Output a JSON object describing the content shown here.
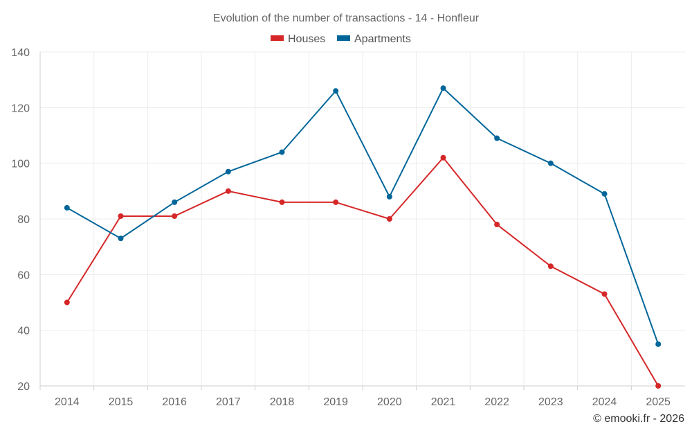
{
  "chart_data": {
    "type": "line",
    "title": "Evolution of the number of transactions - 14 - Honfleur",
    "categories": [
      "2014",
      "2015",
      "2016",
      "2017",
      "2018",
      "2019",
      "2020",
      "2021",
      "2022",
      "2023",
      "2024",
      "2025"
    ],
    "series": [
      {
        "name": "Houses",
        "color": "#d62728",
        "values": [
          50,
          81,
          81,
          90,
          86,
          86,
          80,
          102,
          78,
          63,
          53,
          20
        ]
      },
      {
        "name": "Apartments",
        "color": "#006699",
        "values": [
          84,
          73,
          86,
          97,
          104,
          126,
          88,
          127,
          109,
          100,
          89,
          35
        ]
      }
    ],
    "ylim": [
      20,
      140
    ],
    "yticks": [
      20,
      40,
      60,
      80,
      100,
      120,
      140
    ],
    "grid": true,
    "legend_position": "top-center",
    "xlabel": "",
    "ylabel": ""
  },
  "credit": "© emooki.fr - 2026"
}
